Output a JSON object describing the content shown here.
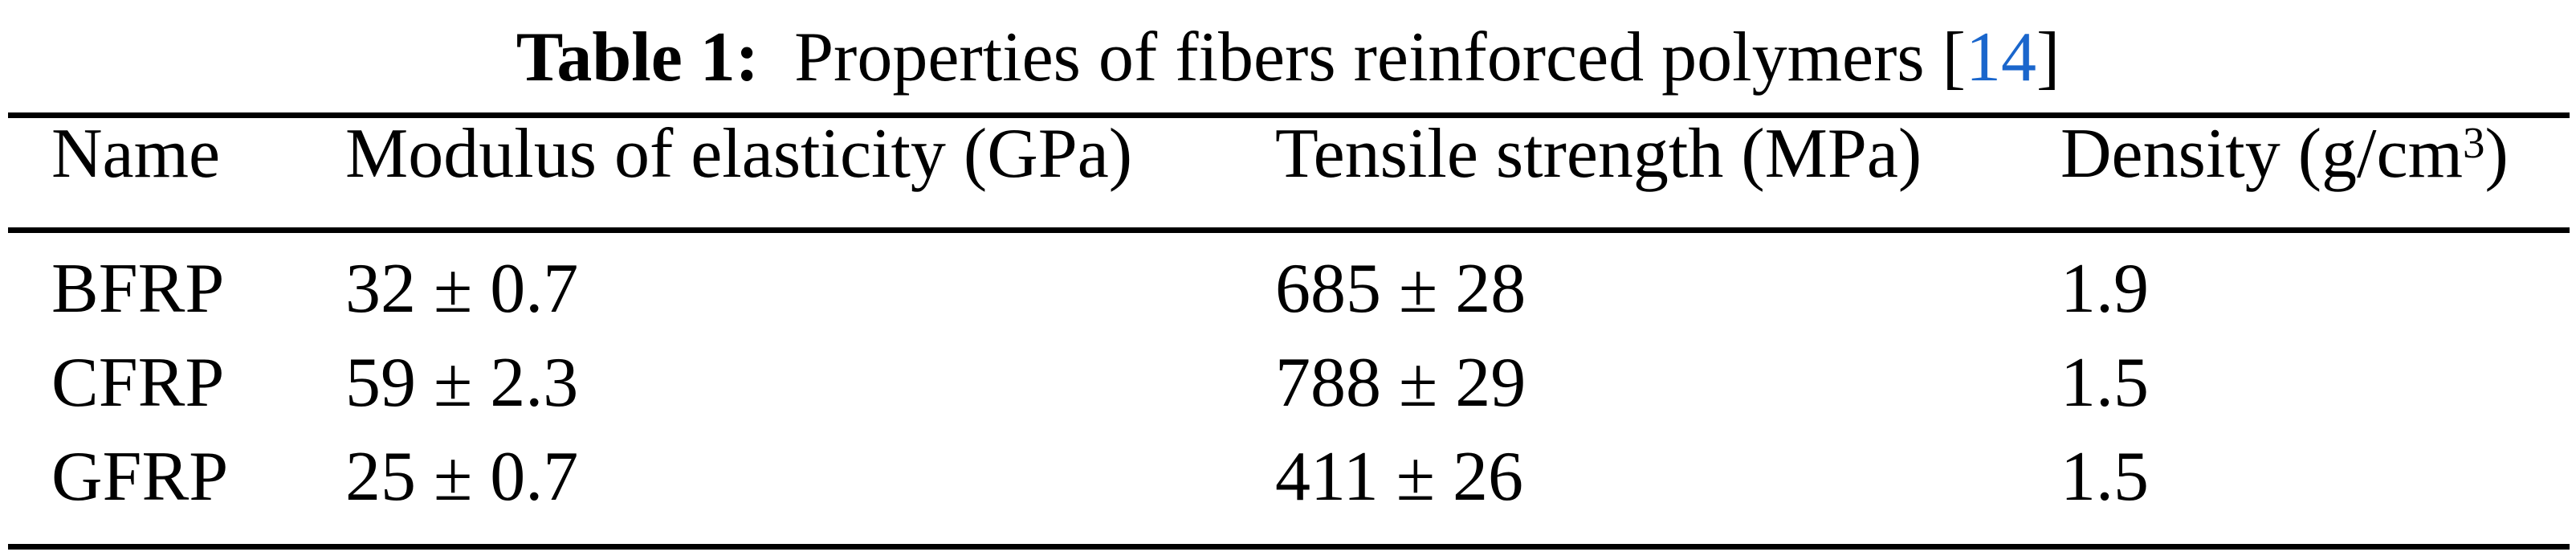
{
  "caption": {
    "label": "Table 1:",
    "text": "Properties of fibers reinforced polymers [",
    "ref": "14",
    "close": "]"
  },
  "table": {
    "headers": [
      "Name",
      "Modulus of elasticity (GPa)",
      "Tensile strength (MPa)",
      "Density (g/cm",
      "3",
      ")"
    ],
    "rows": [
      [
        "BFRP",
        "32 ± 0.7",
        "685 ± 28",
        "1.9"
      ],
      [
        "CFRP",
        "59 ± 2.3",
        "788 ± 29",
        "1.5"
      ],
      [
        "GFRP",
        "25 ± 0.7",
        "411 ± 26",
        "1.5"
      ]
    ]
  },
  "colors": {
    "link": "#1a66cc"
  }
}
